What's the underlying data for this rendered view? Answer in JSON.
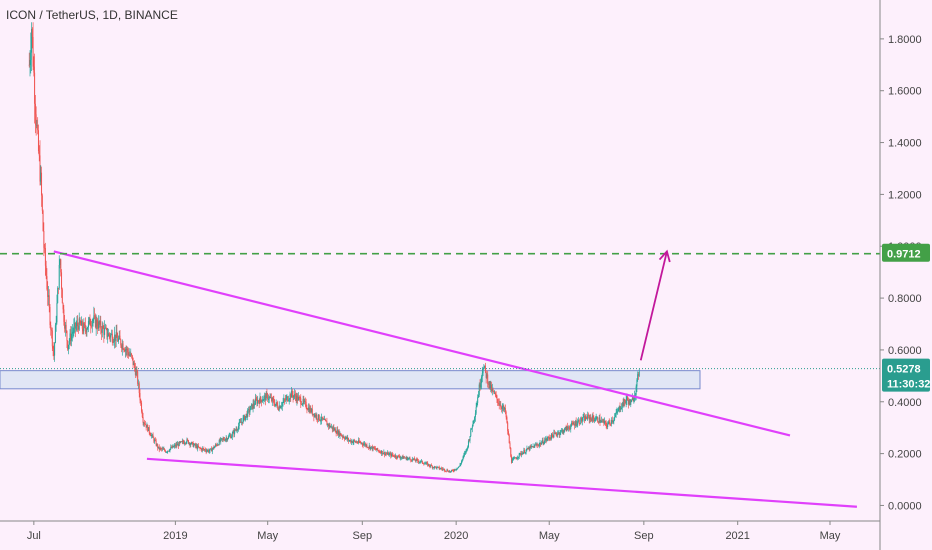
{
  "header": {
    "title": "ICON / TetherUS, 1D, BINANCE"
  },
  "colors": {
    "background": "#fdf0fc",
    "up": "#26a69a",
    "down": "#ef5350",
    "trendline": "#e040fb",
    "arrow": "#c2189b",
    "target_line": "#43a047",
    "support_zone": "#dfe6f5",
    "support_zone_border": "#6a80c8",
    "price_line": "#2a9d8f",
    "axis_text": "#444444"
  },
  "chart_data": {
    "type": "candlestick",
    "title": "ICON / TetherUS, 1D, BINANCE",
    "xlabel": "",
    "ylabel": "",
    "x_ticks": [
      "Jul",
      "2019",
      "May",
      "Sep",
      "2020",
      "May",
      "Sep",
      "2021",
      "May"
    ],
    "y_ticks": [
      "1.8000",
      "1.6000",
      "1.4000",
      "1.2000",
      "1.0000",
      "0.8000",
      "0.6000",
      "0.4000",
      "0.2000",
      "0.0000"
    ],
    "ylim": [
      -0.06,
      1.95
    ],
    "xlim": [
      "2018-05-18",
      "2021-07-05"
    ],
    "grid": false,
    "series": [
      {
        "values": [
          [
            "2018-06-25",
            1.7
          ],
          [
            "2018-06-28",
            1.85
          ],
          [
            "2018-07-02",
            1.6
          ],
          [
            "2018-07-06",
            1.4
          ],
          [
            "2018-07-10",
            1.25
          ],
          [
            "2018-07-14",
            1.0
          ],
          [
            "2018-07-18",
            0.85
          ],
          [
            "2018-07-22",
            0.72
          ],
          [
            "2018-07-27",
            0.58
          ],
          [
            "2018-08-01",
            0.82
          ],
          [
            "2018-08-04",
            0.95
          ],
          [
            "2018-08-08",
            0.75
          ],
          [
            "2018-08-14",
            0.62
          ],
          [
            "2018-08-20",
            0.67
          ],
          [
            "2018-08-28",
            0.7
          ],
          [
            "2018-09-05",
            0.68
          ],
          [
            "2018-09-15",
            0.72
          ],
          [
            "2018-09-25",
            0.69
          ],
          [
            "2018-10-05",
            0.66
          ],
          [
            "2018-10-15",
            0.65
          ],
          [
            "2018-10-25",
            0.62
          ],
          [
            "2018-11-05",
            0.57
          ],
          [
            "2018-11-12",
            0.5
          ],
          [
            "2018-11-20",
            0.33
          ],
          [
            "2018-12-01",
            0.27
          ],
          [
            "2018-12-10",
            0.22
          ],
          [
            "2018-12-20",
            0.21
          ],
          [
            "2019-01-01",
            0.23
          ],
          [
            "2019-01-15",
            0.25
          ],
          [
            "2019-02-01",
            0.22
          ],
          [
            "2019-02-15",
            0.21
          ],
          [
            "2019-03-01",
            0.25
          ],
          [
            "2019-03-15",
            0.27
          ],
          [
            "2019-04-01",
            0.34
          ],
          [
            "2019-04-15",
            0.4
          ],
          [
            "2019-05-01",
            0.42
          ],
          [
            "2019-05-15",
            0.38
          ],
          [
            "2019-06-01",
            0.43
          ],
          [
            "2019-06-15",
            0.4
          ],
          [
            "2019-07-01",
            0.35
          ],
          [
            "2019-07-15",
            0.32
          ],
          [
            "2019-08-01",
            0.28
          ],
          [
            "2019-08-15",
            0.25
          ],
          [
            "2019-09-01",
            0.24
          ],
          [
            "2019-09-15",
            0.22
          ],
          [
            "2019-10-01",
            0.2
          ],
          [
            "2019-10-15",
            0.19
          ],
          [
            "2019-11-01",
            0.18
          ],
          [
            "2019-11-15",
            0.17
          ],
          [
            "2019-12-01",
            0.15
          ],
          [
            "2019-12-15",
            0.14
          ],
          [
            "2019-12-25",
            0.13
          ],
          [
            "2020-01-05",
            0.15
          ],
          [
            "2020-01-15",
            0.22
          ],
          [
            "2020-01-25",
            0.35
          ],
          [
            "2020-02-05",
            0.54
          ],
          [
            "2020-02-15",
            0.45
          ],
          [
            "2020-02-25",
            0.4
          ],
          [
            "2020-03-05",
            0.36
          ],
          [
            "2020-03-13",
            0.17
          ],
          [
            "2020-03-25",
            0.2
          ],
          [
            "2020-04-05",
            0.22
          ],
          [
            "2020-04-20",
            0.24
          ],
          [
            "2020-05-05",
            0.27
          ],
          [
            "2020-05-20",
            0.29
          ],
          [
            "2020-06-05",
            0.32
          ],
          [
            "2020-06-20",
            0.34
          ],
          [
            "2020-07-05",
            0.33
          ],
          [
            "2020-07-15",
            0.31
          ],
          [
            "2020-07-25",
            0.34
          ],
          [
            "2020-08-01",
            0.38
          ],
          [
            "2020-08-10",
            0.41
          ],
          [
            "2020-08-15",
            0.39
          ],
          [
            "2020-08-22",
            0.45
          ],
          [
            "2020-08-26",
            0.53
          ]
        ]
      }
    ],
    "annotations": {
      "upper_trendline": [
        [
          "2018-07-27",
          0.98
        ],
        [
          "2021-03-10",
          0.27
        ]
      ],
      "lower_trendline": [
        [
          "2018-11-25",
          0.18
        ],
        [
          "2021-06-05",
          -0.005
        ]
      ],
      "support_zone": {
        "x0": "2018-05-18",
        "x1": "2020-11-13",
        "y0": 0.45,
        "y1": 0.52
      },
      "target_line": {
        "value": 0.9712,
        "label": "0.9712"
      },
      "current_price": {
        "value": 0.5278,
        "label": "0.5278",
        "countdown": "11:30:32"
      },
      "projection_arrow": [
        [
          "2020-08-28",
          0.56
        ],
        [
          "2020-10-01",
          0.98
        ]
      ]
    }
  }
}
